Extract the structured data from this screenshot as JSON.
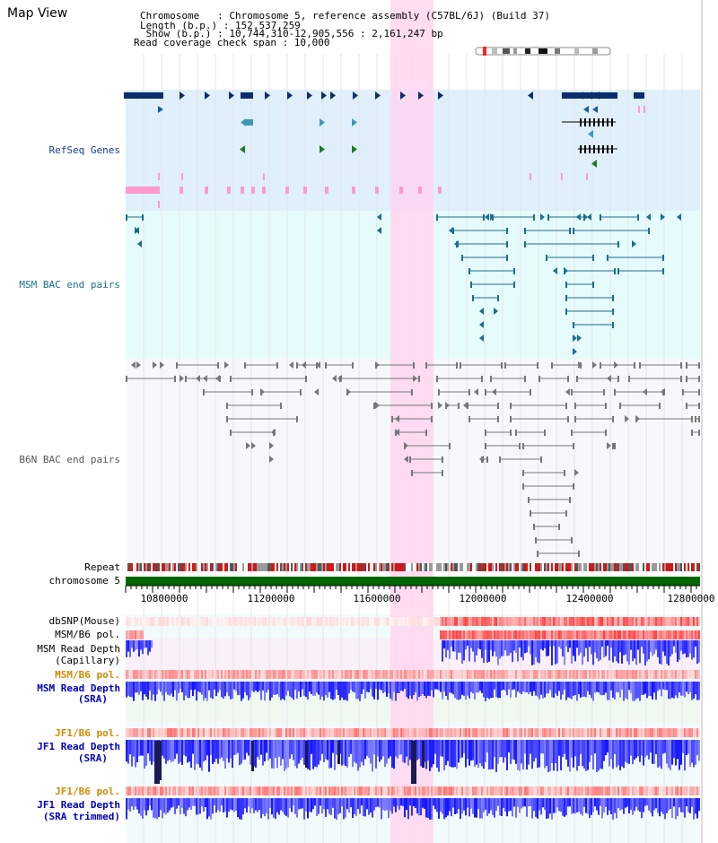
{
  "title": "Map View",
  "header": {
    "chromosome_line": "Chromosome   : Chromosome 5, reference assembly (C57BL/6J) (Build 37)",
    "length_line": "Length (b.p.) : 152,537,259",
    "show_line": " Show (b.p.) : 10,744,310-12,905,556 : 2,161,247 bp",
    "coverage_line": "Read coverage check span : 10,000"
  },
  "tracks": {
    "refseq": "RefSeq Genes",
    "msm_bac": "MSM BAC end pairs",
    "b6n_bac": "B6N BAC end pairs",
    "repeat": "Repeat",
    "chromosome": "chromosome 5",
    "dbsnp": "dbSNP(Mouse)",
    "msm_pol_1": "MSM/B6 pol.",
    "msm_depth_cap_1": "MSM Read Depth",
    "msm_depth_cap_2": "(Capillary)",
    "msm_pol_2": "MSM/B6 pol.",
    "msm_depth_sra_1": "MSM Read Depth",
    "msm_depth_sra_2": "(SRA)",
    "jf1_pol_1": "JF1/B6 pol.",
    "jf1_depth_1": "JF1 Read Depth",
    "jf1_depth_2": "(SRA)",
    "jf1_pol_2": "JF1/B6 pol.",
    "jf1_trim_1": "JF1 Read Depth",
    "jf1_trim_2": "(SRA trimmed)"
  },
  "axis_ticks": [
    "10800000",
    "11200000",
    "11600000",
    "12000000",
    "12400000",
    "12800000"
  ],
  "colors": {
    "refseq_dark": "#0a2d6e",
    "refseq_bg": "#dff0fa",
    "msm_bg": "#e6fbfb",
    "teal": "#1a6f8f",
    "pink": "#ff99cc",
    "highlight": "#ffd6f0",
    "chrom_green": "#006600",
    "depth_blue": "#3333ff"
  }
}
